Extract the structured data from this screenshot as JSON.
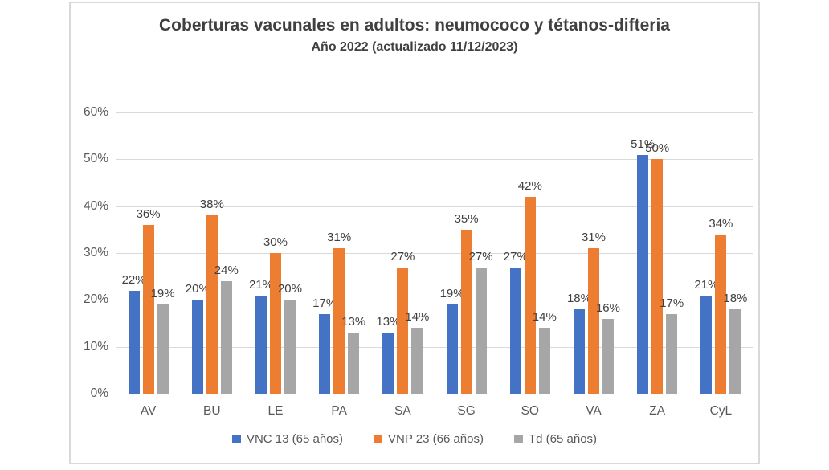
{
  "chart_data": {
    "type": "bar",
    "title": "Coberturas vacunales en adultos: neumococo y tétanos-difteria",
    "subtitle": "Año 2022 (actualizado 11/12/2023)",
    "categories": [
      "AV",
      "BU",
      "LE",
      "PA",
      "SA",
      "SG",
      "SO",
      "VA",
      "ZA",
      "CyL"
    ],
    "series": [
      {
        "name": "VNC 13 (65 años)",
        "key": "vnc-13",
        "color": "#4472c4",
        "values": [
          22,
          20,
          21,
          17,
          13,
          19,
          27,
          18,
          51,
          21
        ]
      },
      {
        "name": "VNP 23 (66 años)",
        "key": "vnp-23",
        "color": "#ed7d31",
        "values": [
          36,
          38,
          30,
          31,
          27,
          35,
          42,
          31,
          50,
          34
        ]
      },
      {
        "name": "Td (65 años)",
        "key": "td",
        "color": "#a6a6a6",
        "values": [
          19,
          24,
          20,
          13,
          14,
          27,
          14,
          16,
          17,
          18
        ]
      }
    ],
    "ylim": [
      0,
      60
    ],
    "ytick_step": 10,
    "ytick_labels": [
      "0%",
      "10%",
      "20%",
      "30%",
      "40%",
      "50%",
      "60%"
    ],
    "grid": true,
    "legend_position": "bottom",
    "data_label_suffix": "%",
    "palette": {
      "gridline": "#d9d9d9",
      "axis_line": "#c0c0c0",
      "title_text": "#404040",
      "axis_text": "#595959",
      "border": "#d9d9d9"
    }
  }
}
